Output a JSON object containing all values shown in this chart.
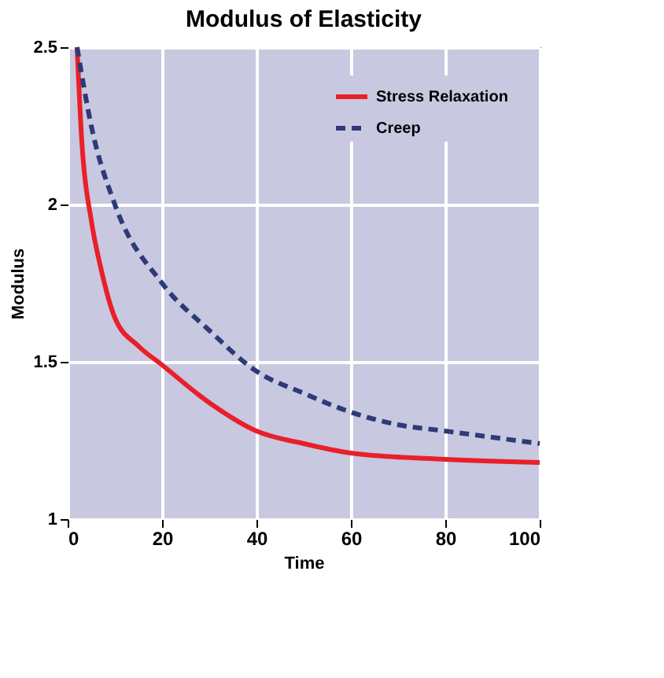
{
  "chart_data": {
    "type": "line",
    "title": "Modulus of Elasticity",
    "xlabel": "Time",
    "ylabel": "Modulus",
    "xlim": [
      0,
      100
    ],
    "xticks": [
      0,
      20,
      40,
      60,
      80,
      100
    ],
    "ylim": [
      1,
      2.5
    ],
    "yticks": [
      {
        "value": 1,
        "label": "1"
      },
      1.5,
      {
        "value": 2,
        "label": "2"
      },
      2.5
    ],
    "grid": true,
    "legend": "top right",
    "marker": "none",
    "series": [
      {
        "name": "Stress Relaxation",
        "color": "#e8202a",
        "line_style": "solid",
        "x": [
          2,
          3,
          5,
          7,
          10,
          15,
          20,
          30,
          40,
          50,
          60,
          80,
          100
        ],
        "values": [
          2.5,
          2.2,
          1.95,
          1.8,
          1.64,
          1.55,
          1.49,
          1.37,
          1.28,
          1.24,
          1.21,
          1.19,
          1.18
        ]
      },
      {
        "name": "Creep",
        "color": "#2e3a78",
        "line_style": "dashed",
        "x": [
          2,
          5,
          10,
          20,
          30,
          40,
          50,
          60,
          70,
          80,
          90,
          100
        ],
        "values": [
          2.5,
          2.25,
          2.0,
          1.75,
          1.6,
          1.47,
          1.4,
          1.34,
          1.3,
          1.28,
          1.26,
          1.24
        ]
      }
    ]
  }
}
